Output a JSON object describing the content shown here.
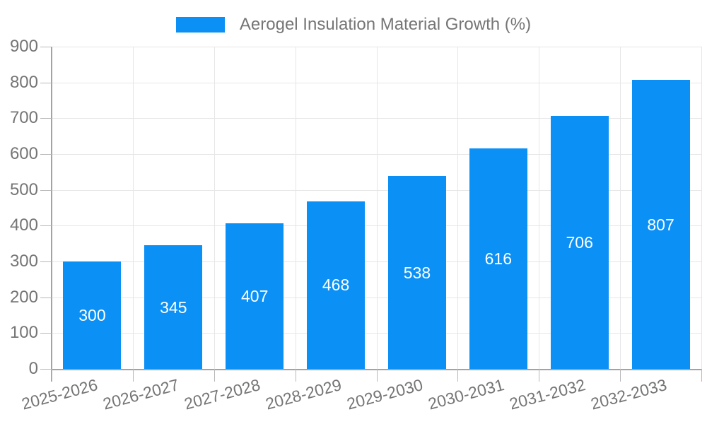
{
  "chart_data": {
    "type": "bar",
    "title": "Aerogel Insulation Material Growth (%)",
    "categories": [
      "2025-2026",
      "2026-2027",
      "2027-2028",
      "2028-2029",
      "2029-2030",
      "2030-2031",
      "2031-2032",
      "2032-2033"
    ],
    "values": [
      300,
      345,
      407,
      468,
      538,
      616,
      706,
      807
    ],
    "xlabel": "",
    "ylabel": "",
    "ylim": [
      0,
      900
    ],
    "ytick_step": 100,
    "ytick_labels": [
      "0",
      "100",
      "200",
      "300",
      "400",
      "500",
      "600",
      "700",
      "800",
      "900"
    ],
    "grid": true,
    "legend_position": "top-center",
    "value_label_position": "inside-center"
  },
  "colors": {
    "bar": "#0b90f6",
    "grid": "#e6e6e6",
    "axis": "#a3a3a3",
    "tick": "#b8b8b8",
    "label": "#757575",
    "value_label": "#ffffff",
    "background": "#ffffff"
  }
}
